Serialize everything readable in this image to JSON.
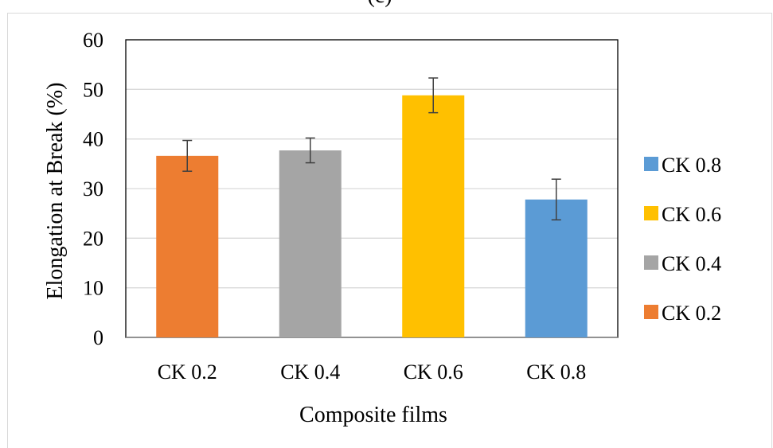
{
  "chart_data": {
    "type": "bar",
    "title_fragment": "(c)",
    "xlabel": "Composite films",
    "ylabel": "Elongation at Break (%)",
    "categories": [
      "CK 0.2",
      "CK 0.4",
      "CK 0.6",
      "CK 0.8"
    ],
    "values": [
      36.6,
      37.7,
      48.8,
      27.8
    ],
    "errors": [
      3.1,
      2.5,
      3.5,
      4.1
    ],
    "colors": [
      "#ED7D31",
      "#A5A5A5",
      "#FFC000",
      "#5B9BD5"
    ],
    "ylim": [
      0,
      60
    ],
    "yticks": [
      0,
      10,
      20,
      30,
      40,
      50,
      60
    ],
    "grid": true,
    "legend_position": "right",
    "legend": [
      {
        "label": "CK 0.8",
        "color": "#5B9BD5"
      },
      {
        "label": "CK 0.6",
        "color": "#FFC000"
      },
      {
        "label": "CK 0.4",
        "color": "#A5A5A5"
      },
      {
        "label": "CK 0.2",
        "color": "#ED7D31"
      }
    ]
  }
}
